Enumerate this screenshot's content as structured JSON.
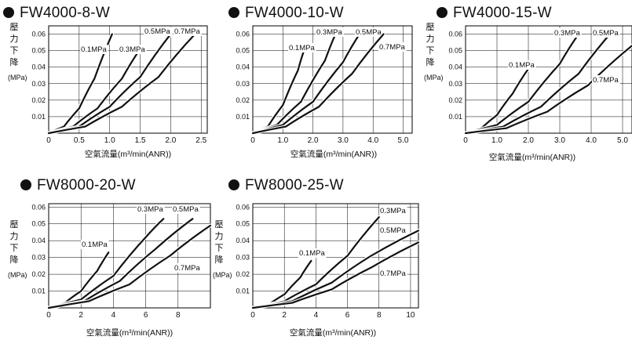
{
  "chart_data": [
    {
      "type": "line",
      "title": "FW4000-8-W",
      "ylabel": [
        "壓",
        "力",
        "下",
        "降",
        "(MPa)"
      ],
      "xlabel": "空氣流量(m³/min(ANR))",
      "xlim": [
        0,
        2.6
      ],
      "ylim": [
        0,
        0.065
      ],
      "xticks": [
        "0",
        "0.5",
        "1.0",
        "1.5",
        "2.0",
        "2.5"
      ],
      "yticks": [
        "0.01",
        "0.02",
        "0.03",
        "0.04",
        "0.05",
        "0.06"
      ],
      "grid": true,
      "series": [
        {
          "name": "0.1MPa",
          "x": [
            0,
            0.25,
            0.5,
            0.75,
            1.04
          ],
          "y": [
            0,
            0.004,
            0.015,
            0.033,
            0.06
          ]
        },
        {
          "name": "0.3MPa",
          "x": [
            0,
            0.4,
            0.8,
            1.2,
            1.5
          ],
          "y": [
            0,
            0.004,
            0.015,
            0.033,
            0.051
          ]
        },
        {
          "name": "0.5MPa",
          "x": [
            0,
            0.5,
            1.0,
            1.5,
            2.0
          ],
          "y": [
            0,
            0.004,
            0.016,
            0.034,
            0.06
          ]
        },
        {
          "name": "0.7MPa",
          "x": [
            0,
            0.6,
            1.2,
            1.8,
            2.4
          ],
          "y": [
            0,
            0.004,
            0.016,
            0.034,
            0.06
          ]
        }
      ]
    },
    {
      "type": "line",
      "title": "FW4000-10-W",
      "ylabel": [],
      "xlabel": "空氣流量(m³/min(ANR))",
      "xlim": [
        0,
        5.3
      ],
      "ylim": [
        0,
        0.065
      ],
      "xticks": [
        "0",
        "1.0",
        "2.0",
        "3.0",
        "4.0",
        "5.0"
      ],
      "yticks": [
        "0.01",
        "0.02",
        "0.03",
        "0.04",
        "0.05",
        "0.06"
      ],
      "grid": true,
      "series": [
        {
          "name": "0.1MPa",
          "x": [
            0,
            0.5,
            1.0,
            1.5,
            1.7
          ],
          "y": [
            0,
            0.004,
            0.017,
            0.038,
            0.05
          ]
        },
        {
          "name": "0.3MPa",
          "x": [
            0,
            0.8,
            1.6,
            2.4,
            2.75
          ],
          "y": [
            0,
            0.005,
            0.019,
            0.044,
            0.06
          ]
        },
        {
          "name": "0.5MPa",
          "x": [
            0,
            1.0,
            2.0,
            3.0,
            3.55
          ],
          "y": [
            0,
            0.005,
            0.019,
            0.043,
            0.06
          ]
        },
        {
          "name": "0.7MPa",
          "x": [
            0,
            1.1,
            2.2,
            3.3,
            4.35
          ],
          "y": [
            0,
            0.004,
            0.016,
            0.036,
            0.06
          ]
        }
      ]
    },
    {
      "type": "line",
      "title": "FW4000-15-W",
      "ylabel": [
        "壓",
        "力",
        "下",
        "降",
        "(MPa)"
      ],
      "xlabel": "空氣流量(m³/min(ANR))",
      "xlim": [
        0,
        5.3
      ],
      "ylim": [
        0,
        0.065
      ],
      "xticks": [
        "0",
        "1.0",
        "2.0",
        "3.0",
        "4.0",
        "5.0"
      ],
      "yticks": [
        "0.01",
        "0.02",
        "0.03",
        "0.04",
        "0.05",
        "0.06"
      ],
      "grid": true,
      "series": [
        {
          "name": "0.1MPa",
          "x": [
            0,
            0.5,
            1.0,
            1.5,
            2.0
          ],
          "y": [
            0,
            0.003,
            0.011,
            0.024,
            0.039
          ]
        },
        {
          "name": "0.3MPa",
          "x": [
            0,
            1.0,
            2.0,
            3.0,
            3.6
          ],
          "y": [
            0,
            0.005,
            0.019,
            0.042,
            0.06
          ]
        },
        {
          "name": "0.5MPa",
          "x": [
            0,
            1.2,
            2.4,
            3.6,
            4.6
          ],
          "y": [
            0,
            0.004,
            0.016,
            0.036,
            0.06
          ]
        },
        {
          "name": "0.7MPa",
          "x": [
            0,
            1.3,
            2.6,
            3.9,
            5.3
          ],
          "y": [
            0,
            0.003,
            0.013,
            0.029,
            0.053
          ]
        }
      ]
    },
    {
      "type": "line",
      "title": "FW8000-20-W",
      "ylabel": [
        "壓",
        "力",
        "下",
        "降",
        "(MPa)"
      ],
      "xlabel": "空氣流量(m³/min(ANR))",
      "xlim": [
        0,
        10
      ],
      "ylim": [
        0,
        0.062
      ],
      "xticks": [
        "0",
        "2",
        "4",
        "6",
        "8"
      ],
      "yticks": [
        "0.01",
        "0.02",
        "0.03",
        "0.04",
        "0.05",
        "0.06"
      ],
      "grid": true,
      "series": [
        {
          "name": "0.1MPa",
          "x": [
            0,
            1,
            2,
            3,
            3.7
          ],
          "y": [
            0,
            0.003,
            0.01,
            0.022,
            0.033
          ]
        },
        {
          "name": "0.3MPa",
          "x": [
            0,
            2,
            4,
            6,
            7.1
          ],
          "y": [
            0,
            0.005,
            0.019,
            0.042,
            0.053
          ]
        },
        {
          "name": "0.5MPa",
          "x": [
            0,
            2.2,
            4.4,
            6.6,
            8.9
          ],
          "y": [
            0,
            0.004,
            0.016,
            0.035,
            0.053
          ]
        },
        {
          "name": "0.7MPa",
          "x": [
            0,
            2.5,
            5.0,
            7.5,
            10
          ],
          "y": [
            0,
            0.004,
            0.014,
            0.031,
            0.049
          ]
        }
      ]
    },
    {
      "type": "line",
      "title": "FW8000-25-W",
      "ylabel": [
        "壓",
        "力",
        "下",
        "降",
        "(MPa)"
      ],
      "xlabel": "空氣流量(m³/min(ANR))",
      "xlim": [
        0,
        10.5
      ],
      "ylim": [
        0,
        0.062
      ],
      "xticks": [
        "0",
        "2",
        "4",
        "6",
        "8",
        "10"
      ],
      "yticks": [
        "0.01",
        "0.02",
        "0.03",
        "0.04",
        "0.05",
        "0.06"
      ],
      "grid": true,
      "series": [
        {
          "name": "0.1MPa",
          "x": [
            0,
            1,
            2,
            3,
            3.7
          ],
          "y": [
            0,
            0.002,
            0.008,
            0.018,
            0.028
          ]
        },
        {
          "name": "0.3MPa",
          "x": [
            0,
            2,
            4,
            6,
            8
          ],
          "y": [
            0,
            0.004,
            0.014,
            0.031,
            0.054
          ]
        },
        {
          "name": "0.5MPa",
          "x": [
            0,
            2.5,
            5.0,
            7.5,
            10.5
          ],
          "y": [
            0,
            0.004,
            0.015,
            0.031,
            0.046
          ]
        },
        {
          "name": "0.7MPa",
          "x": [
            0,
            2.5,
            5.0,
            7.5,
            10.5
          ],
          "y": [
            0,
            0.003,
            0.011,
            0.024,
            0.039
          ]
        }
      ]
    }
  ]
}
